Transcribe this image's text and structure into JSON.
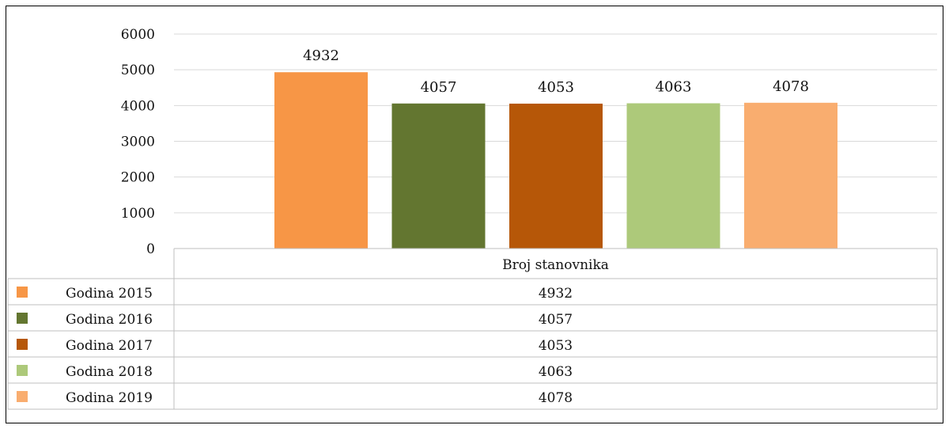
{
  "chart_data": {
    "type": "bar",
    "category_label": "Broj stanovnika",
    "series": [
      {
        "name": "Godina 2015",
        "value": 4932,
        "color": "#F79646"
      },
      {
        "name": "Godina 2016",
        "value": 4057,
        "color": "#637630"
      },
      {
        "name": "Godina 2017",
        "value": 4053,
        "color": "#B65708"
      },
      {
        "name": "Godina 2018",
        "value": 4063,
        "color": "#ADC97A"
      },
      {
        "name": "Godina 2019",
        "value": 4078,
        "color": "#F9AD6F"
      }
    ],
    "y_ticks": [
      "0",
      "1000",
      "2000",
      "3000",
      "4000",
      "5000",
      "6000"
    ],
    "ylim": [
      0,
      6000
    ],
    "grid": true,
    "legend": "data-table"
  }
}
